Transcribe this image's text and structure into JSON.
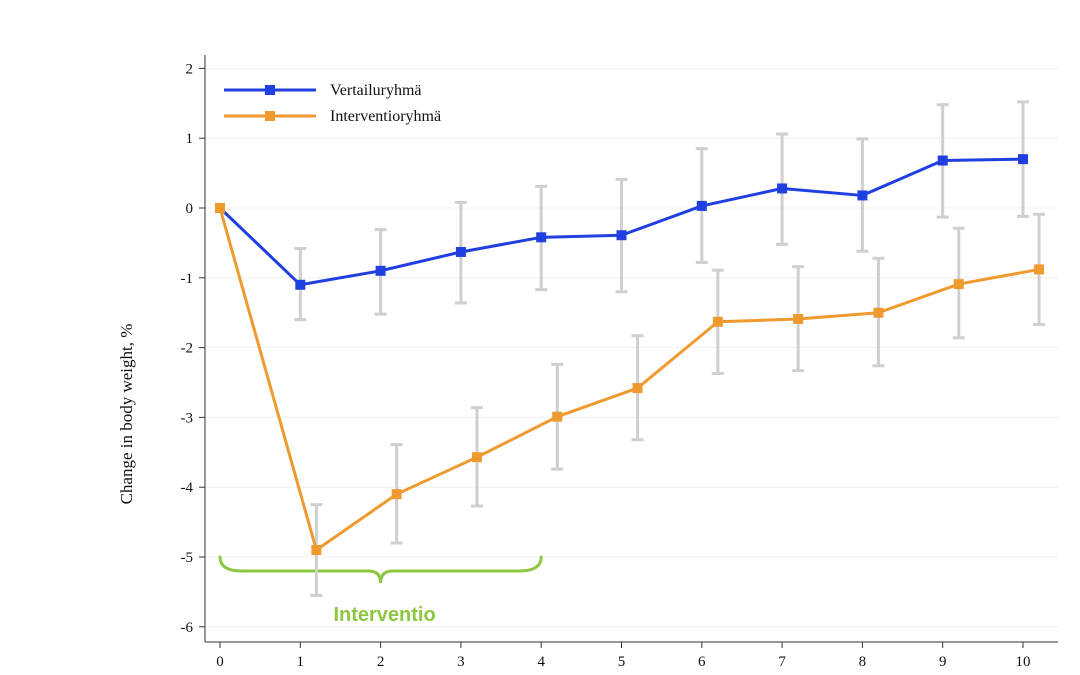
{
  "chart_data": {
    "type": "line",
    "xlabel": "",
    "ylabel": "Change in body weight, %",
    "ylim": [
      -6,
      2
    ],
    "xlim": [
      0,
      10
    ],
    "x_ticks": [
      "0",
      "1",
      "2",
      "3",
      "4",
      "5",
      "6",
      "7",
      "8",
      "9",
      "10"
    ],
    "y_ticks": [
      "2",
      "1",
      "0",
      "-1",
      "-2",
      "-3",
      "-4",
      "-5",
      "-6"
    ],
    "grid": true,
    "legend_position": "top-left",
    "series": [
      {
        "name": "Vertailuryhmä",
        "color": "#1f3fe0",
        "points": [
          {
            "x": 0,
            "y": 0
          },
          {
            "x": 1,
            "y": -1.1,
            "err_low": -1.6,
            "err_high": -0.58
          },
          {
            "x": 2,
            "y": -0.9,
            "err_low": -1.52,
            "err_high": -0.31
          },
          {
            "x": 3,
            "y": -0.63,
            "err_low": -1.36,
            "err_high": 0.08
          },
          {
            "x": 4,
            "y": -0.42,
            "err_low": -1.17,
            "err_high": 0.31
          },
          {
            "x": 5,
            "y": -0.39,
            "err_low": -1.2,
            "err_high": 0.41
          },
          {
            "x": 6,
            "y": 0.03,
            "err_low": -0.78,
            "err_high": 0.85
          },
          {
            "x": 7,
            "y": 0.28,
            "err_low": -0.52,
            "err_high": 1.06
          },
          {
            "x": 8,
            "y": 0.18,
            "err_low": -0.62,
            "err_high": 0.99
          },
          {
            "x": 9,
            "y": 0.68,
            "err_low": -0.13,
            "err_high": 1.48
          },
          {
            "x": 10,
            "y": 0.7,
            "err_low": -0.12,
            "err_high": 1.52
          }
        ]
      },
      {
        "name": "Interventioryhmä",
        "color": "#ee9a2e",
        "points": [
          {
            "x": 0,
            "y": 0
          },
          {
            "x": 1.2,
            "y": -4.9,
            "err_low": -5.55,
            "err_high": -4.25
          },
          {
            "x": 2.2,
            "y": -4.1,
            "err_low": -4.8,
            "err_high": -3.39
          },
          {
            "x": 3.2,
            "y": -3.57,
            "err_low": -4.27,
            "err_high": -2.86
          },
          {
            "x": 4.2,
            "y": -2.99,
            "err_low": -3.74,
            "err_high": -2.24
          },
          {
            "x": 5.2,
            "y": -2.58,
            "err_low": -3.32,
            "err_high": -1.83
          },
          {
            "x": 6.2,
            "y": -1.63,
            "err_low": -2.37,
            "err_high": -0.89
          },
          {
            "x": 7.2,
            "y": -1.59,
            "err_low": -2.33,
            "err_high": -0.84
          },
          {
            "x": 8.2,
            "y": -1.5,
            "err_low": -2.26,
            "err_high": -0.72
          },
          {
            "x": 9.2,
            "y": -1.09,
            "err_low": -1.86,
            "err_high": -0.29
          },
          {
            "x": 10.2,
            "y": -0.88,
            "err_low": -1.67,
            "err_high": -0.09
          }
        ]
      }
    ],
    "annotation": {
      "label": "Interventio",
      "x_from": 0,
      "x_to": 4,
      "y": -5,
      "color": "#8dc63f"
    },
    "error_bar_color": "#cfcfcf"
  }
}
